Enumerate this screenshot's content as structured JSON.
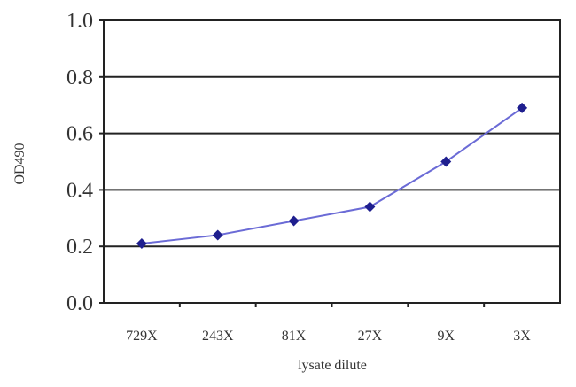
{
  "chart_data": {
    "type": "line",
    "title": "",
    "xlabel": "lysate dilute",
    "ylabel": "OD490",
    "categories": [
      "729X",
      "243X",
      "81X",
      "27X",
      "9X",
      "3X"
    ],
    "series": [
      {
        "values": [
          0.21,
          0.24,
          0.29,
          0.34,
          0.5,
          0.69
        ],
        "color": "#1f1f8f",
        "line_color": "#6b6bd6",
        "marker": "diamond"
      }
    ],
    "ylim": [
      0.0,
      1.0
    ],
    "yticks": [
      "0.0",
      "0.2",
      "0.4",
      "0.6",
      "0.8",
      "1.0"
    ],
    "grid": "horizontal",
    "legend": "none"
  }
}
